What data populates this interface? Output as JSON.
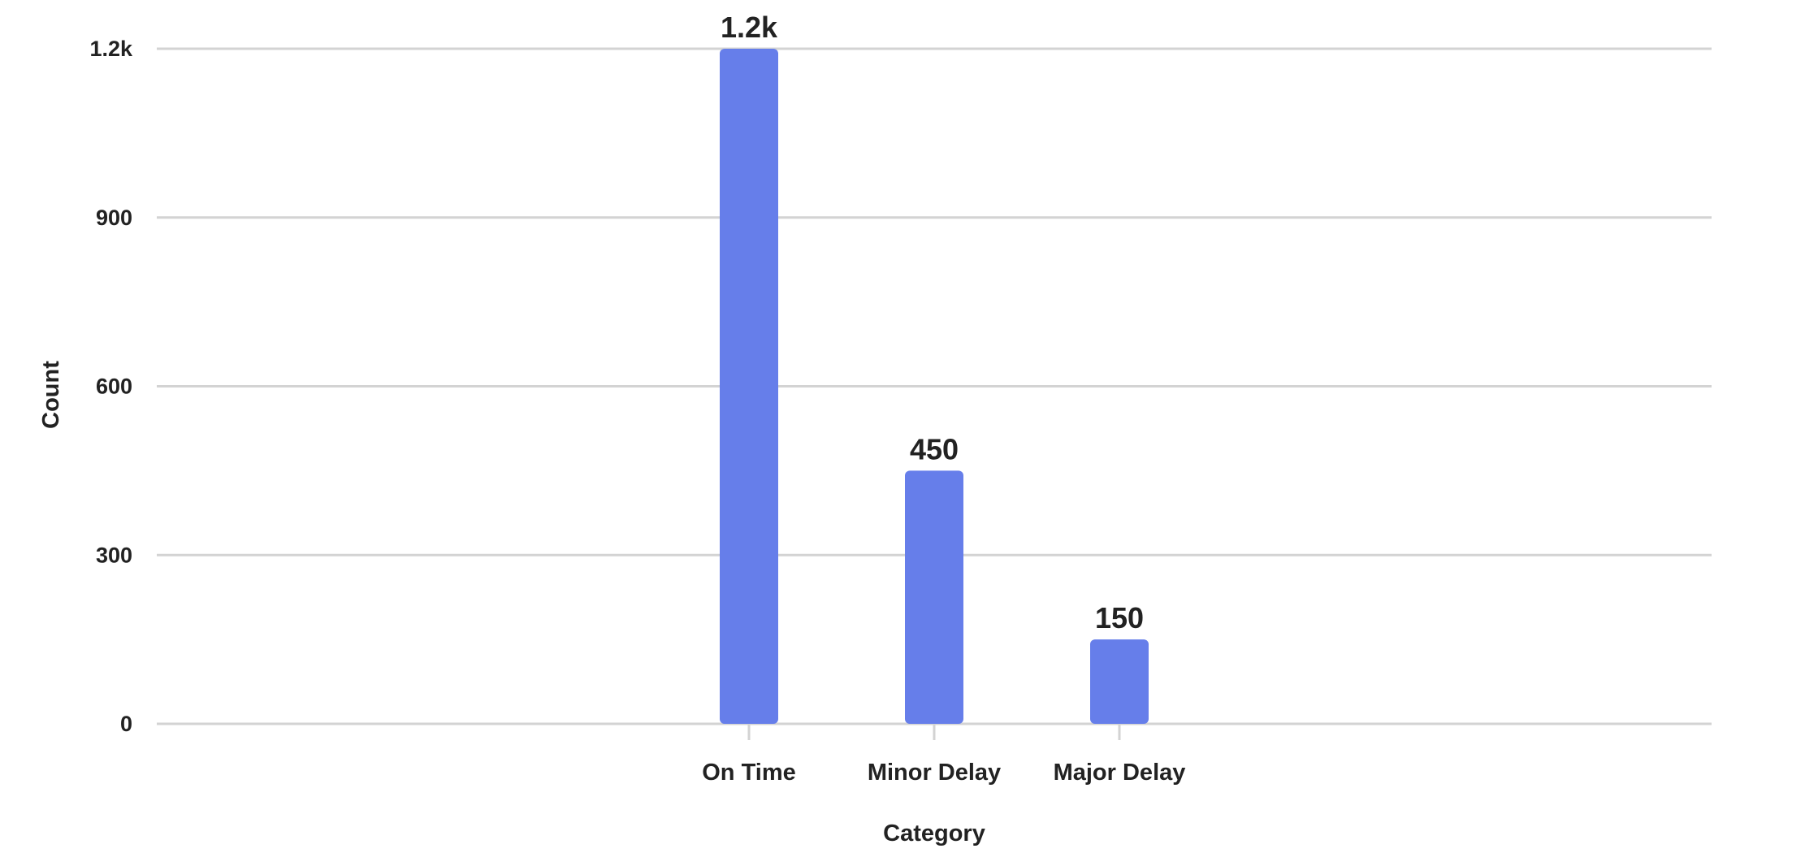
{
  "chart_data": {
    "type": "bar",
    "categories": [
      "On Time",
      "Minor Delay",
      "Major Delay"
    ],
    "values": [
      1200,
      450,
      150
    ],
    "data_labels": [
      "1.2k",
      "450",
      "150"
    ],
    "title": "",
    "xlabel": "Category",
    "ylabel": "Count",
    "ylim": [
      0,
      1200
    ],
    "y_ticks": [
      0,
      300,
      600,
      900,
      1200
    ],
    "y_tick_labels": [
      "0",
      "300",
      "600",
      "900",
      "1.2k"
    ],
    "grid": true,
    "legend": "none",
    "bar_color": "#667eea"
  }
}
